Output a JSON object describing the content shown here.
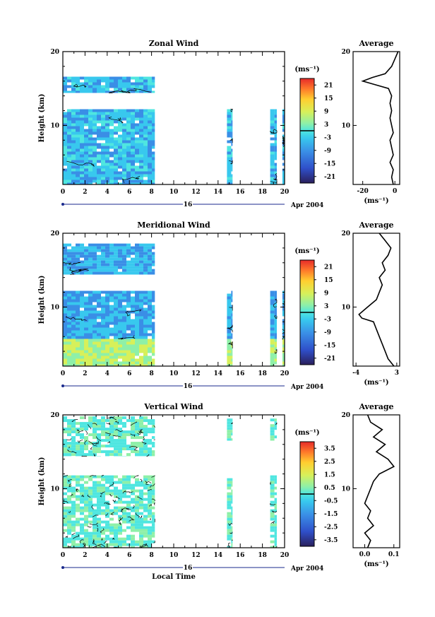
{
  "chart_data": [
    {
      "type": "heatmap",
      "title": "Zonal Wind",
      "xlabel": "",
      "ylabel": "Height (km)",
      "xlim": [
        0,
        20
      ],
      "ylim": [
        2,
        20
      ],
      "x_ticks": [
        "0",
        "2",
        "4",
        "6",
        "8",
        "10",
        "12",
        "14",
        "16",
        "18",
        "20"
      ],
      "y_ticks": [
        "10",
        "20"
      ],
      "date_marker": "16",
      "date_label": "Apr 2004",
      "colorbar": {
        "unit": "(ms⁻¹)",
        "ticks": [
          "21",
          "15",
          "9",
          "3",
          "-3",
          "-9",
          "-15",
          "-21"
        ],
        "range": [
          -24,
          24
        ],
        "zero_line": -0.0
      },
      "data_blocks": [
        {
          "x": [
            0,
            8.3
          ],
          "y": [
            2,
            12.2
          ]
        },
        {
          "x": [
            0,
            8.3
          ],
          "y": [
            14.4,
            16.6
          ]
        },
        {
          "x": [
            14.8,
            15.3
          ],
          "y": [
            2,
            12.2
          ]
        },
        {
          "x": [
            18.7,
            19.3
          ],
          "y": [
            2,
            12.2
          ]
        },
        {
          "x": [
            19.8,
            20
          ],
          "y": [
            2,
            12.2
          ]
        }
      ],
      "average": {
        "title": "Average",
        "xlabel": "(ms⁻¹)",
        "x_ticks": [
          "-20",
          "0"
        ],
        "xlim": [
          -26,
          3
        ],
        "ylim": [
          2,
          20
        ],
        "y_ticks": [
          "10",
          "20"
        ],
        "height": [
          2,
          3,
          4,
          5,
          6,
          7,
          8,
          9,
          10,
          11,
          12,
          13,
          14,
          15,
          15.5,
          16,
          16.5,
          17,
          18,
          19,
          20
        ],
        "value": [
          -1,
          -2,
          -1,
          -3,
          -1,
          -2,
          -3,
          -1,
          -2,
          -3,
          -2,
          -3,
          -2,
          -4,
          -12,
          -20,
          -14,
          -6,
          -2,
          0,
          2
        ]
      }
    },
    {
      "type": "heatmap",
      "title": "Meridional Wind",
      "xlabel": "",
      "ylabel": "Height (km)",
      "xlim": [
        0,
        20
      ],
      "ylim": [
        2,
        20
      ],
      "x_ticks": [
        "0",
        "2",
        "4",
        "6",
        "8",
        "10",
        "12",
        "14",
        "16",
        "18",
        "20"
      ],
      "y_ticks": [
        "10",
        "20"
      ],
      "date_marker": "16",
      "date_label": "Apr 2004",
      "colorbar": {
        "unit": "(ms⁻¹)",
        "ticks": [
          "21",
          "15",
          "9",
          "3",
          "-3",
          "-9",
          "-15",
          "-21"
        ],
        "range": [
          -24,
          24
        ],
        "zero_line": 0
      },
      "data_blocks": [
        {
          "x": [
            0,
            8.3
          ],
          "y": [
            2,
            12.2
          ]
        },
        {
          "x": [
            0,
            8.3
          ],
          "y": [
            14.4,
            18.6
          ]
        },
        {
          "x": [
            14.8,
            15.3
          ],
          "y": [
            2,
            12.2
          ]
        },
        {
          "x": [
            18.7,
            19.3
          ],
          "y": [
            2,
            12.2
          ]
        },
        {
          "x": [
            19.8,
            20
          ],
          "y": [
            2,
            12.2
          ]
        }
      ],
      "average": {
        "title": "Average",
        "xlabel": "(ms⁻¹)",
        "x_ticks": [
          "-4",
          "3"
        ],
        "xlim": [
          -4.5,
          3.5
        ],
        "ylim": [
          2,
          20
        ],
        "y_ticks": [
          "10",
          "20"
        ],
        "height": [
          2,
          3,
          4,
          5,
          6,
          7,
          8,
          8.5,
          9,
          10,
          11,
          12,
          13,
          14,
          15,
          16,
          17,
          18,
          19,
          20
        ],
        "value": [
          2.5,
          1.5,
          1,
          0.5,
          0,
          -0.5,
          -1,
          -3,
          -3.5,
          -2,
          -0.5,
          0,
          0.5,
          0,
          1,
          0.5,
          1.5,
          2,
          1,
          0
        ]
      }
    },
    {
      "type": "heatmap",
      "title": "Vertical Wind",
      "xlabel": "Local Time",
      "ylabel": "Height (km)",
      "xlim": [
        0,
        20
      ],
      "ylim": [
        2,
        20
      ],
      "x_ticks": [
        "0",
        "2",
        "4",
        "6",
        "8",
        "10",
        "12",
        "14",
        "16",
        "18",
        "20"
      ],
      "y_ticks": [
        "10",
        "20"
      ],
      "date_marker": "16",
      "date_label": "Apr 2004",
      "colorbar": {
        "unit": "(ms⁻¹)",
        "ticks": [
          "3.5",
          "2.5",
          "1.5",
          "0.5",
          "-0.5",
          "-1.5",
          "-2.5",
          "-3.5"
        ],
        "range": [
          -4,
          4
        ],
        "zero_line": 0
      },
      "data_blocks": [
        {
          "x": [
            0,
            8.3
          ],
          "y": [
            2,
            11.8
          ]
        },
        {
          "x": [
            0,
            8.3
          ],
          "y": [
            14.4,
            19.8
          ]
        },
        {
          "x": [
            14.8,
            15.3
          ],
          "y": [
            2,
            11.8
          ]
        },
        {
          "x": [
            14.8,
            15.3
          ],
          "y": [
            16.5,
            19.5
          ]
        },
        {
          "x": [
            18.7,
            19.3
          ],
          "y": [
            2,
            11.8
          ]
        },
        {
          "x": [
            18.7,
            19.3
          ],
          "y": [
            16.5,
            19.5
          ]
        }
      ],
      "average": {
        "title": "Average",
        "xlabel": "(ms⁻¹)",
        "x_ticks": [
          "0.0",
          "0.1"
        ],
        "xlim": [
          -0.04,
          0.12
        ],
        "ylim": [
          2,
          20
        ],
        "y_ticks": [
          "10",
          "20"
        ],
        "height": [
          2,
          3,
          4,
          5,
          6,
          7,
          8,
          9,
          10,
          11,
          12,
          13,
          14,
          15,
          16,
          17,
          18,
          19,
          20
        ],
        "value": [
          0.01,
          0.02,
          0.0,
          0.03,
          0.01,
          0.02,
          0.0,
          0.01,
          0.02,
          0.03,
          0.05,
          0.1,
          0.08,
          0.04,
          0.07,
          0.03,
          0.06,
          0.02,
          0.01
        ]
      }
    }
  ]
}
